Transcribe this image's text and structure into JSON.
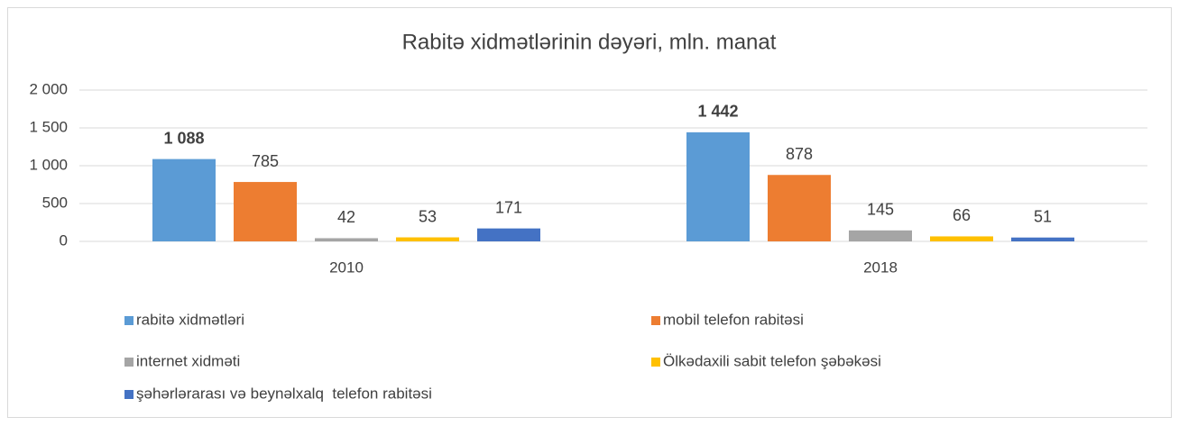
{
  "chart_data": {
    "type": "bar",
    "title": "Rabitə xidmətlərinin dəyəri, mln. manat",
    "categories": [
      "2010",
      "2018"
    ],
    "series": [
      {
        "name": "rabitə xidmətləri",
        "color": "#5b9bd5",
        "values": [
          1088,
          1442
        ],
        "value_labels": [
          "1 088",
          "1 442"
        ],
        "bold_labels": true
      },
      {
        "name": "mobil telefon rabitəsi",
        "color": "#ed7d31",
        "values": [
          785,
          878
        ]
      },
      {
        "name": "internet xidməti",
        "color": "#a5a5a5",
        "values": [
          42,
          145
        ]
      },
      {
        "name": "Ölkədaxili sabit telefon şəbəkəsi",
        "color": "#ffc000",
        "values": [
          53,
          66
        ]
      },
      {
        "name": "şəhərlərarası və beynəlxalq  telefon rabitəsi",
        "color": "#4472c4",
        "values": [
          171,
          51
        ]
      }
    ],
    "ylim": [
      0,
      2000
    ],
    "yticks": [
      0,
      500,
      {
        "value": 1000,
        "label": "1 000"
      },
      {
        "value": 1500,
        "label": "1 500"
      },
      {
        "value": 2000,
        "label": "2 000"
      }
    ],
    "grid": true,
    "legend": "bottom"
  }
}
